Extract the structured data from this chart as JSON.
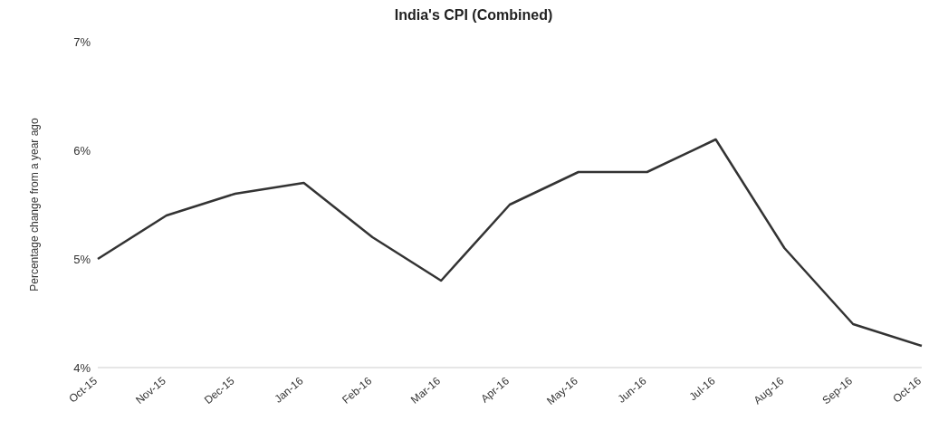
{
  "chart_data": {
    "type": "line",
    "title": "India's CPI (Combined)",
    "ylabel": "Percentage change from a year ago",
    "categories": [
      "Oct-15",
      "Nov-15",
      "Dec-15",
      "Jan-16",
      "Feb-16",
      "Mar-16",
      "Apr-16",
      "May-16",
      "Jun-16",
      "Jul-16",
      "Aug-16",
      "Sep-16",
      "Oct-16"
    ],
    "series": [
      {
        "color": "#333333",
        "values": [
          5.0,
          5.4,
          5.6,
          5.7,
          5.2,
          4.8,
          5.5,
          5.8,
          5.8,
          6.1,
          5.1,
          4.4,
          4.2
        ]
      }
    ],
    "ylim": [
      4,
      7
    ],
    "yticks": [
      {
        "value": 4,
        "label": "4%"
      },
      {
        "value": 5,
        "label": "5%"
      },
      {
        "value": 6,
        "label": "6%"
      },
      {
        "value": 7,
        "label": "7%"
      }
    ],
    "grid": false,
    "legend": false,
    "marker": "none",
    "line_style": "solid"
  }
}
